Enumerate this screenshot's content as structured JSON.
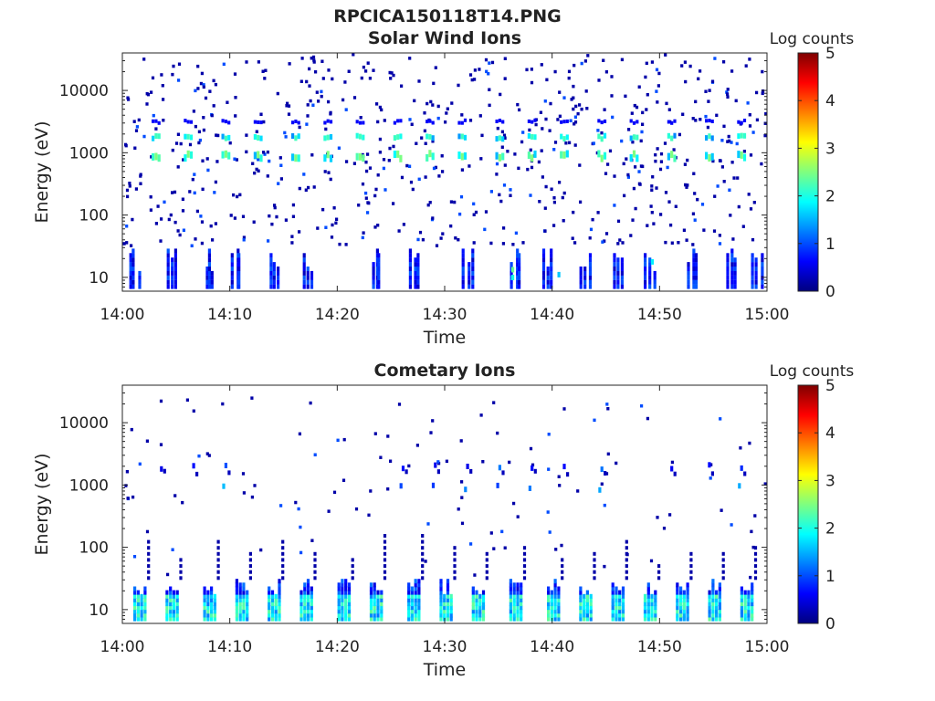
{
  "figure": {
    "title": "RPCICA150118T14.PNG"
  },
  "colorscale": [
    "#00007f",
    "#0000ff",
    "#007fff",
    "#00ffff",
    "#7fff7f",
    "#ffff00",
    "#ff7f00",
    "#ff0000",
    "#7f0000"
  ],
  "chart_data": [
    {
      "type": "heatmap",
      "title": "Solar Wind Ions",
      "xlabel": "Time",
      "ylabel": "Energy (eV)",
      "xticks": [
        "14:00",
        "14:10",
        "14:20",
        "14:30",
        "14:40",
        "14:50",
        "15:00"
      ],
      "xlim": [
        "14:00",
        "15:00"
      ],
      "yscale": "log",
      "yticks": [
        10,
        100,
        1000,
        10000
      ],
      "ytick_labels": [
        "10",
        "100",
        "1000",
        "10000"
      ],
      "ylim": [
        6,
        40000
      ],
      "colorbar": {
        "label": "Log counts",
        "range": [
          0,
          5
        ],
        "ticks": [
          "0",
          "1",
          "2",
          "3",
          "4",
          "5"
        ]
      },
      "features": {
        "peak_energy_bands_eV": [
          800,
          1600
        ],
        "peak_band_level": 2.5,
        "peak_band_times_min": [
          3,
          6,
          9.5,
          12.5,
          16,
          19,
          22,
          25.5,
          28.5,
          31.5,
          35,
          38,
          41,
          44.5,
          47.5,
          51,
          54.5,
          57.5
        ],
        "low_energy_burst_times_min": [
          1,
          4.5,
          8,
          10.5,
          14,
          17,
          23.5,
          27,
          32,
          36.5,
          39.5,
          43,
          46,
          49,
          53,
          56.5,
          59
        ],
        "low_energy_range_eV": [
          6,
          28
        ],
        "background_scatter": "sparse single counts (log ~0-1) from 30 eV to 40000 eV"
      }
    },
    {
      "type": "heatmap",
      "title": "Cometary Ions",
      "xlabel": "Time",
      "ylabel": "Energy (eV)",
      "xticks": [
        "14:00",
        "14:10",
        "14:20",
        "14:30",
        "14:40",
        "14:50",
        "15:00"
      ],
      "xlim": [
        "14:00",
        "15:00"
      ],
      "yscale": "log",
      "yticks": [
        10,
        100,
        1000,
        10000
      ],
      "ytick_labels": [
        "10",
        "100",
        "1000",
        "10000"
      ],
      "ylim": [
        6,
        40000
      ],
      "colorbar": {
        "label": "Log counts",
        "range": [
          0,
          5
        ],
        "ticks": [
          "0",
          "1",
          "2",
          "3",
          "4",
          "5"
        ]
      },
      "features": {
        "low_energy_burst_times_min": [
          1.5,
          4.5,
          8,
          11,
          14,
          17,
          20.5,
          23.5,
          27,
          30,
          33,
          36.5,
          40,
          43,
          46,
          49,
          52,
          55,
          58
        ],
        "low_energy_range_eV": [
          6,
          28
        ],
        "low_energy_level": 2.2,
        "high_energy_bands_eV": [
          800,
          1800
        ],
        "high_energy_band_times_min": [
          3.5,
          6.5,
          9.5,
          26,
          29,
          32,
          35,
          38,
          41,
          44.5,
          51,
          54.5,
          57.5
        ],
        "background_scatter": "sparse single counts (log ~0-1) from 30 eV to 25000 eV"
      }
    }
  ]
}
